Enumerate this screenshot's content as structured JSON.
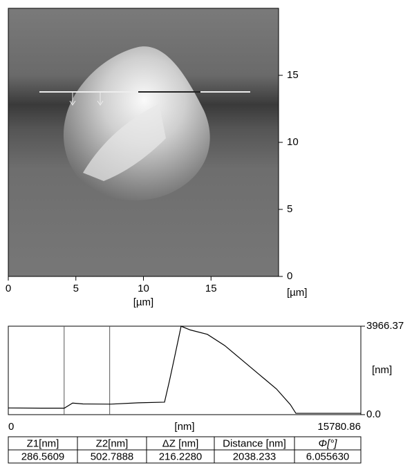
{
  "chart_data": [
    {
      "type": "image",
      "x_label": "[µm]",
      "y_label": "[µm]",
      "xlim": [
        0,
        20
      ],
      "xticks": [
        0,
        5,
        10,
        15
      ],
      "ylim": [
        0,
        20
      ],
      "yticks": [
        0,
        5,
        10,
        15
      ]
    },
    {
      "type": "line",
      "x_label": "[nm]",
      "y_label": "[nm]",
      "xlim": [
        0,
        15780.86
      ],
      "xticks": [
        0,
        15780.86
      ],
      "ylim": [
        0,
        3966.37
      ],
      "yticks": [
        {
          "value": 0,
          "label": "0.0"
        },
        3966.37
      ],
      "cursors": [
        2500,
        4538
      ],
      "color": "#000000",
      "x": [
        0,
        1485,
        2506,
        2878,
        3342,
        4580,
        5817,
        6993,
        7210,
        7426,
        7736,
        8138,
        8912,
        9685,
        10459,
        11232,
        12006,
        12625,
        12872,
        14172,
        15780
      ],
      "values": [
        300,
        290,
        290,
        520,
        480,
        470,
        530,
        560,
        1500,
        2500,
        3966,
        3800,
        3600,
        3100,
        2450,
        1800,
        1150,
        450,
        60,
        60,
        60
      ]
    }
  ],
  "table": {
    "header": [
      "Z1[nm]",
      "Z2[nm]",
      "ΔZ [nm]",
      "Distance [nm]",
      "Φ[°]"
    ],
    "rows": [
      [
        "286.5609",
        "502.7888",
        "216.2280",
        "2038.233",
        "6.055630"
      ]
    ]
  }
}
